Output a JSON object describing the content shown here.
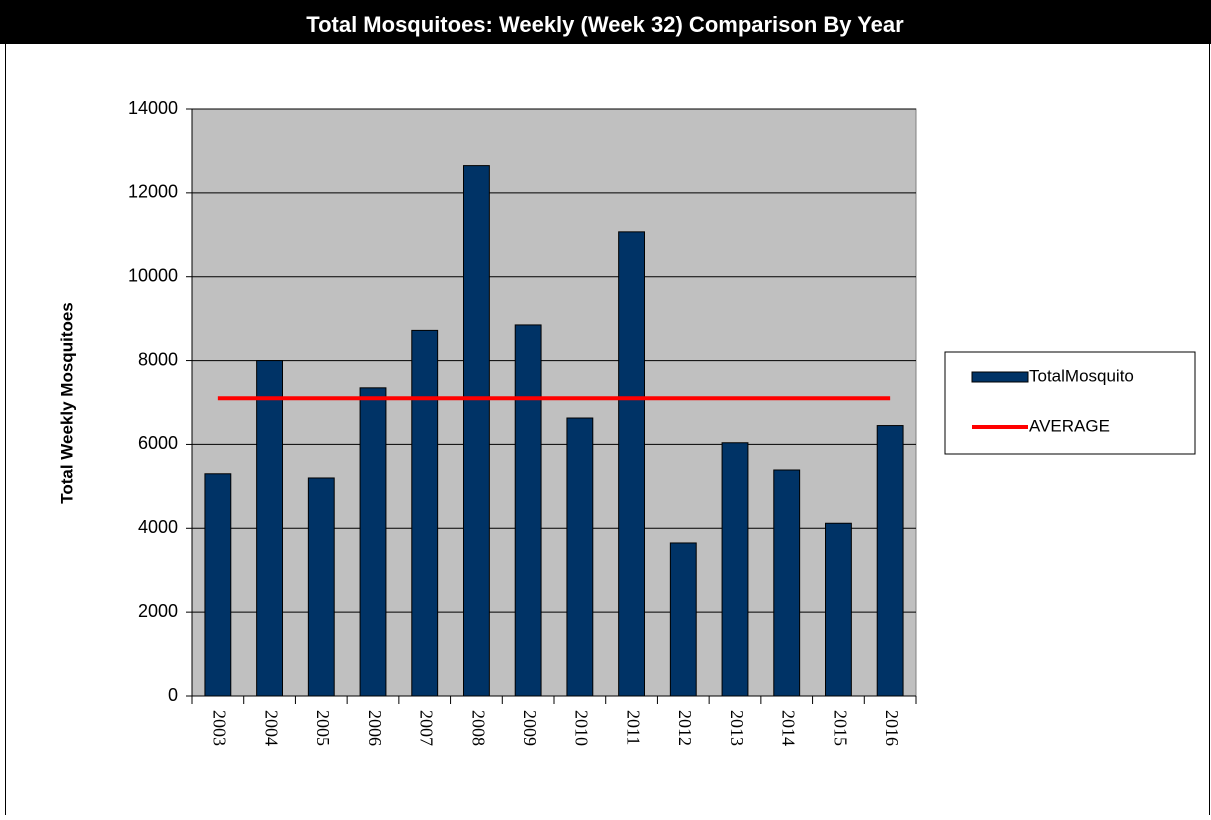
{
  "chart_data": {
    "type": "bar",
    "title": "Total Mosquitoes: Weekly (Week 32) Comparison By Year",
    "y_label": "Total Weekly Mosquitoes",
    "categories": [
      "2003",
      "2004",
      "2005",
      "2006",
      "2007",
      "2008",
      "2009",
      "2010",
      "2011",
      "2012",
      "2013",
      "2014",
      "2015",
      "2016"
    ],
    "series": [
      {
        "name": "TotalMosquito",
        "color": "#003366",
        "type": "bar",
        "values": [
          5300,
          8000,
          5200,
          7350,
          8720,
          12650,
          8850,
          6630,
          11070,
          3650,
          6040,
          5390,
          4120,
          6450
        ]
      },
      {
        "name": "AVERAGE",
        "color": "#ff0000",
        "type": "line",
        "values": [
          7100,
          7100,
          7100,
          7100,
          7100,
          7100,
          7100,
          7100,
          7100,
          7100,
          7100,
          7100,
          7100,
          7100
        ]
      }
    ],
    "ylim": [
      0,
      14000
    ],
    "yticks": [
      0,
      2000,
      4000,
      6000,
      8000,
      10000,
      12000,
      14000
    ],
    "grid": true,
    "legend": "right",
    "plot_background": "#c0c0c0"
  }
}
